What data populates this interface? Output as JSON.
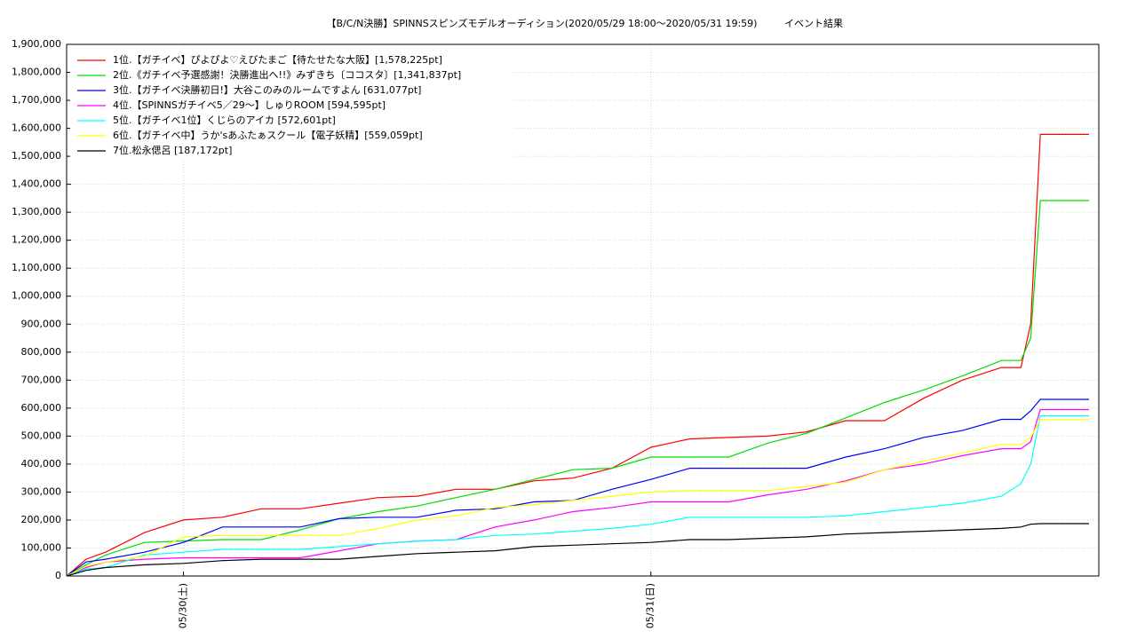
{
  "chart_data": {
    "type": "line",
    "title": "【B/C/N決勝】SPINNSスピンズモデルオーディション(2020/05/29 18:00～2020/05/31 19:59)",
    "subtitle": "イベント結果",
    "x": [
      0,
      1,
      2,
      4,
      6,
      8,
      10,
      12,
      14,
      16,
      18,
      20,
      22,
      24,
      26,
      28,
      30,
      32,
      34,
      36,
      38,
      40,
      42,
      44,
      46,
      48,
      49,
      49.5,
      50,
      52.5
    ],
    "xlim": [
      0,
      53
    ],
    "xticks": [
      {
        "value": 6,
        "label": "05/30(土)"
      },
      {
        "value": 30,
        "label": "05/31(日)"
      }
    ],
    "ylim": [
      0,
      1900000
    ],
    "yticks": [
      0,
      {
        "value": 100000,
        "label": "100,000"
      },
      {
        "value": 200000,
        "label": "200,000"
      },
      {
        "value": 300000,
        "label": "300,000"
      },
      {
        "value": 400000,
        "label": "400,000"
      },
      {
        "value": 500000,
        "label": "500,000"
      },
      {
        "value": 600000,
        "label": "600,000"
      },
      {
        "value": 700000,
        "label": "700,000"
      },
      {
        "value": 800000,
        "label": "800,000"
      },
      {
        "value": 900000,
        "label": "900,000"
      },
      {
        "value": 1000000,
        "label": "1,000,000"
      },
      {
        "value": 1100000,
        "label": "1,100,000"
      },
      {
        "value": 1200000,
        "label": "1,200,000"
      },
      {
        "value": 1300000,
        "label": "1,300,000"
      },
      {
        "value": 1400000,
        "label": "1,400,000"
      },
      {
        "value": 1500000,
        "label": "1,500,000"
      },
      {
        "value": 1600000,
        "label": "1,600,000"
      },
      {
        "value": 1700000,
        "label": "1,700,000"
      },
      {
        "value": 1800000,
        "label": "1,800,000"
      },
      {
        "value": 1900000,
        "label": "1,900,000"
      }
    ],
    "grid": true,
    "legend": "upper-left",
    "series": [
      {
        "name": "1位.【ガチイベ】ぴよぴよ♡えびたまご【待たせたな大阪】[1,578,225pt]",
        "color": "#ff0000",
        "values": [
          0,
          60000,
          85000,
          155000,
          200000,
          210000,
          240000,
          240000,
          260000,
          280000,
          285000,
          310000,
          310000,
          340000,
          350000,
          385000,
          460000,
          490000,
          495000,
          500000,
          515000,
          555000,
          555000,
          635000,
          700000,
          745000,
          745000,
          900000,
          1578225,
          1578225
        ]
      },
      {
        "name": "2位.《ガチイベ予選感謝！決勝進出へ!!》みずきち〔ココスタ〕[1,341,837pt]",
        "color": "#00dd00",
        "values": [
          0,
          40000,
          75000,
          120000,
          125000,
          130000,
          130000,
          165000,
          205000,
          230000,
          250000,
          280000,
          310000,
          345000,
          380000,
          385000,
          425000,
          425000,
          425000,
          475000,
          510000,
          565000,
          620000,
          665000,
          715000,
          770000,
          770000,
          850000,
          1341837,
          1341837
        ]
      },
      {
        "name": "3位.【ガチイベ決勝初日!】大谷このみのルームですよん [631,077pt]",
        "color": "#0000ff",
        "values": [
          0,
          50000,
          60000,
          85000,
          120000,
          175000,
          175000,
          175000,
          205000,
          210000,
          210000,
          235000,
          240000,
          265000,
          270000,
          310000,
          345000,
          385000,
          385000,
          385000,
          385000,
          425000,
          455000,
          495000,
          520000,
          560000,
          560000,
          590000,
          631077,
          631077
        ]
      },
      {
        "name": "4位.【SPINNSガチイベ5／29〜】しゅりROOM [594,595pt]",
        "color": "#ff00ff",
        "values": [
          0,
          30000,
          50000,
          60000,
          65000,
          65000,
          65000,
          65000,
          90000,
          115000,
          125000,
          130000,
          175000,
          200000,
          230000,
          245000,
          265000,
          265000,
          265000,
          290000,
          310000,
          340000,
          380000,
          400000,
          430000,
          455000,
          455000,
          480000,
          594595,
          594595
        ]
      },
      {
        "name": "5位.【ガチイベ1位】くじらのアイカ [572,601pt]",
        "color": "#00ffff",
        "values": [
          0,
          25000,
          30000,
          75000,
          85000,
          95000,
          95000,
          95000,
          105000,
          115000,
          125000,
          130000,
          145000,
          150000,
          160000,
          170000,
          185000,
          210000,
          210000,
          210000,
          210000,
          215000,
          230000,
          245000,
          260000,
          285000,
          330000,
          400000,
          572601,
          572601
        ]
      },
      {
        "name": "6位.【ガチイベ中】うか'sあふたぁスクール【電子妖精】[559,059pt]",
        "color": "#ffff00",
        "values": [
          0,
          35000,
          50000,
          70000,
          140000,
          145000,
          145000,
          145000,
          145000,
          170000,
          200000,
          215000,
          245000,
          255000,
          270000,
          285000,
          300000,
          305000,
          305000,
          305000,
          320000,
          335000,
          380000,
          410000,
          440000,
          470000,
          470000,
          495000,
          559059,
          559059
        ]
      },
      {
        "name": "7位.松永偲呂 [187,172pt]",
        "color": "#000000",
        "values": [
          0,
          20000,
          30000,
          40000,
          45000,
          55000,
          60000,
          60000,
          60000,
          70000,
          80000,
          85000,
          90000,
          105000,
          110000,
          115000,
          120000,
          130000,
          130000,
          135000,
          140000,
          150000,
          155000,
          160000,
          165000,
          170000,
          175000,
          185000,
          187172,
          187172
        ]
      }
    ]
  }
}
